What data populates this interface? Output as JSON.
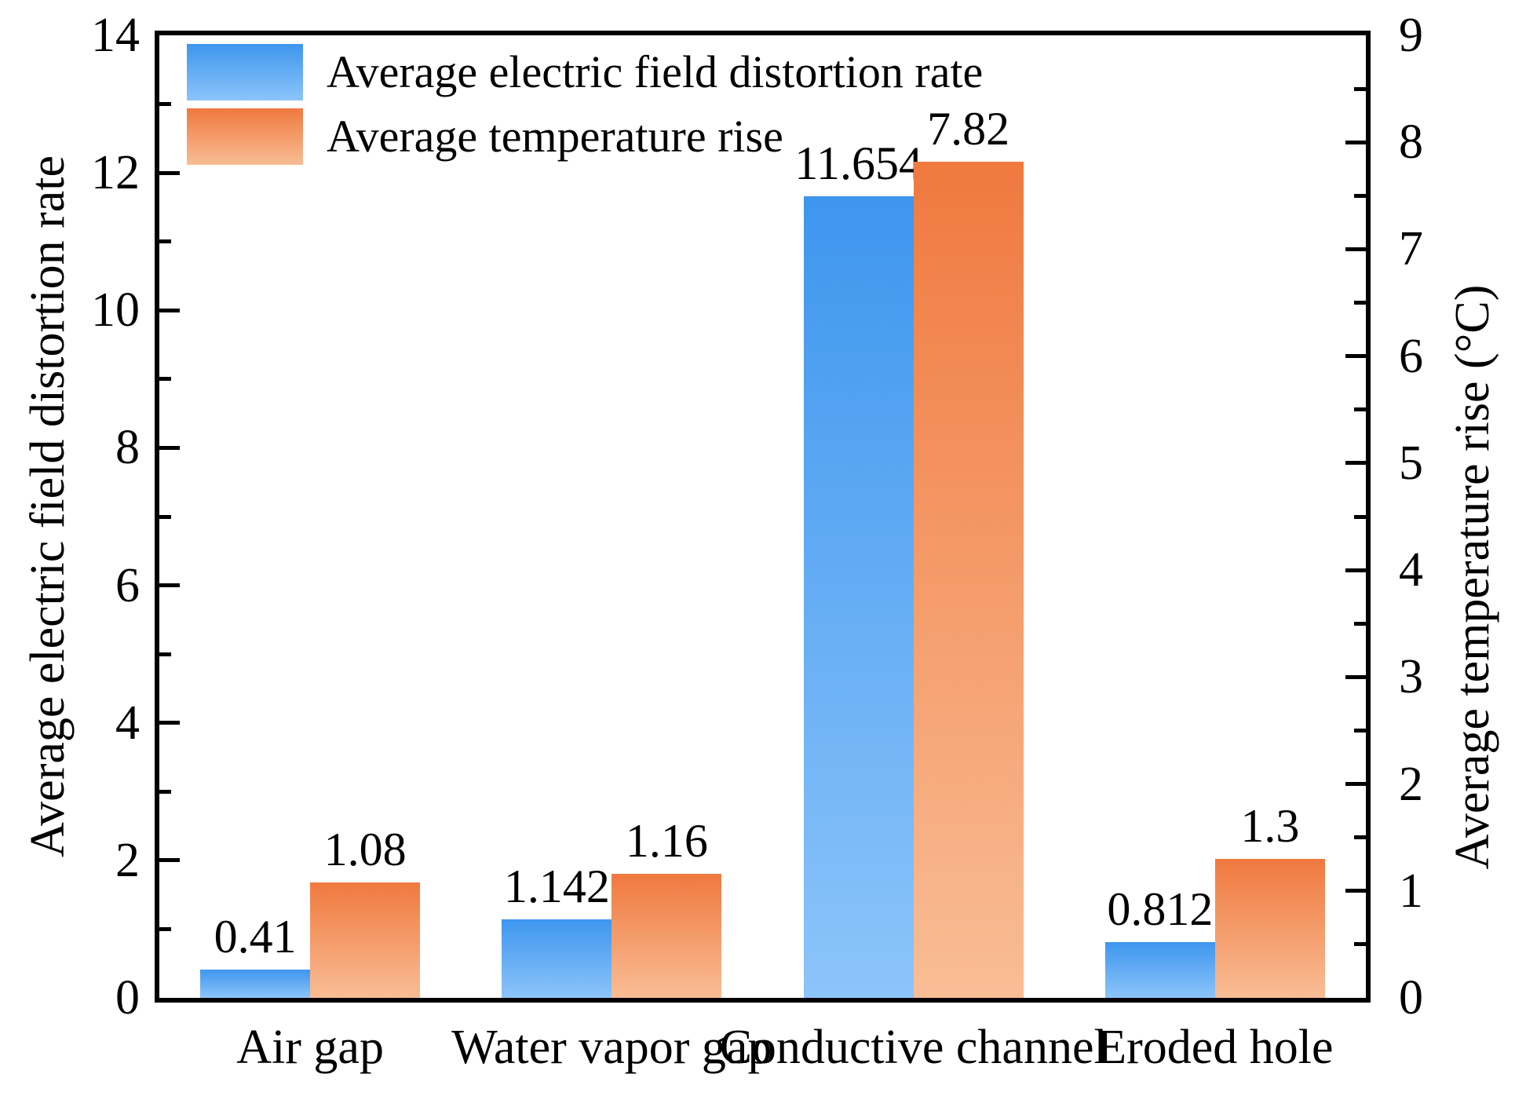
{
  "figure": {
    "background": "#ffffff",
    "frame_color": "#000000",
    "text_color": "#000000"
  },
  "chart_data": {
    "type": "bar",
    "categories": [
      "Air gap",
      "Water vapor gap",
      "Conductive channel",
      "Eroded hole"
    ],
    "series": [
      {
        "name": "Average electric field distortion rate",
        "axis": "left",
        "values": [
          0.41,
          1.142,
          11.654,
          0.812
        ],
        "labels": [
          "0.41",
          "1.142",
          "11.654",
          "0.812"
        ],
        "color_top": "#3e96ee",
        "color_bottom": "#8cc4fa"
      },
      {
        "name": "Average temperature rise",
        "axis": "right",
        "values": [
          1.08,
          1.16,
          7.82,
          1.3
        ],
        "labels": [
          "1.08",
          "1.16",
          "7.82",
          "1.3"
        ],
        "color_top": "#f0793f",
        "color_bottom": "#f9bd95"
      }
    ],
    "left_axis": {
      "label": "Average electric field distortion rate",
      "min": 0,
      "max": 14,
      "major_step": 2,
      "minor_step": 1,
      "tick_labels": [
        "0",
        "2",
        "4",
        "6",
        "8",
        "10",
        "12",
        "14"
      ]
    },
    "right_axis": {
      "label": "Average temperature rise (°C)",
      "min": 0,
      "max": 9,
      "major_step": 1,
      "minor_step": 0.5,
      "tick_labels": [
        "0",
        "1",
        "2",
        "3",
        "4",
        "5",
        "6",
        "7",
        "8",
        "9"
      ]
    },
    "legend": {
      "position": "top-left",
      "entries": [
        "Average electric field distortion rate",
        "Average temperature rise"
      ]
    },
    "grid": false
  }
}
